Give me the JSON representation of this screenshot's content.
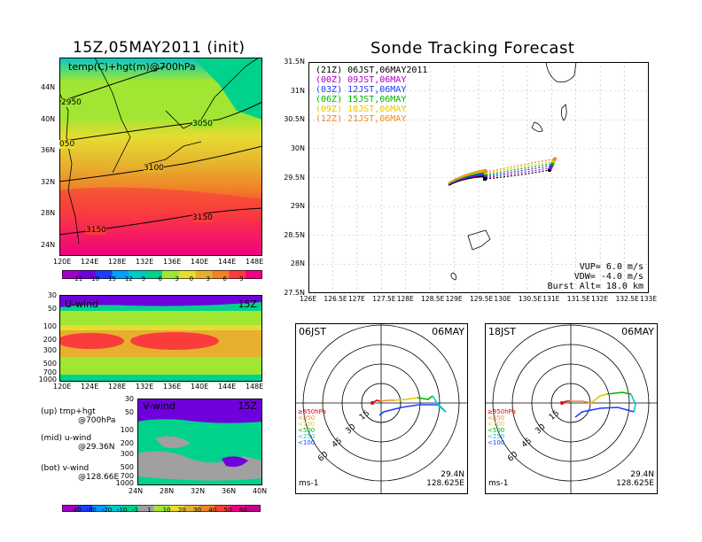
{
  "left_title": "15Z,05MAY2011 (init)",
  "right_title": "Sonde Tracking Forecast",
  "temp_map": {
    "label": "temp(C)+hgt(m)@700hPa",
    "lat_ticks": [
      "44N",
      "40N",
      "36N",
      "32N",
      "28N",
      "24N"
    ],
    "lon_ticks": [
      "120E",
      "124E",
      "128E",
      "132E",
      "136E",
      "140E",
      "144E",
      "148E"
    ],
    "contour_labels": [
      "2950",
      "3050",
      "050",
      "3100",
      "3150",
      "3150"
    ],
    "colorbar_ticks": [
      "-21",
      "-18",
      "-15",
      "-12",
      "-9",
      "-6",
      "-3",
      "0",
      "3",
      "6",
      "9"
    ],
    "colorbar_colors": [
      "#a000c8",
      "#6e00dc",
      "#1e3cff",
      "#00a0ff",
      "#00c8c8",
      "#00d28c",
      "#a0e632",
      "#e6dc32",
      "#e6af2d",
      "#f08228",
      "#fa3c3c",
      "#f00082"
    ]
  },
  "u_wind": {
    "label": "U-wind",
    "time": "15Z",
    "p_ticks": [
      "30",
      "50",
      "100",
      "200",
      "300",
      "500",
      "700",
      "1000"
    ],
    "lon_ticks": [
      "120E",
      "124E",
      "128E",
      "132E",
      "136E",
      "140E",
      "144E",
      "148E"
    ]
  },
  "v_wind": {
    "label": "V-wind",
    "time": "15Z",
    "p_ticks": [
      "30",
      "50",
      "100",
      "200",
      "300",
      "500",
      "700",
      "1000"
    ],
    "lat_ticks": [
      "24N",
      "28N",
      "32N",
      "36N",
      "40N"
    ]
  },
  "legend_notes": [
    {
      "line1": "(up) tmp+hgt",
      "line2": "@700hPa"
    },
    {
      "line1": "(mid) u-wind",
      "line2": "@29.36N"
    },
    {
      "line1": "(bot) v-wind",
      "line2": "@128.66E"
    }
  ],
  "wind_colorbar": {
    "ticks": [
      "-40",
      "-30",
      "-20",
      "-10",
      "-1",
      "1",
      "10",
      "20",
      "30",
      "40",
      "50",
      "60"
    ],
    "colors": [
      "#a000c8",
      "#1e3cff",
      "#00a0ff",
      "#00c8c8",
      "#00d28c",
      "#a0a0a0",
      "#a0e632",
      "#e6dc32",
      "#e6af2d",
      "#f08228",
      "#fa3c3c",
      "#f00082",
      "#c8008c"
    ]
  },
  "tracking": {
    "lat_ticks": [
      "31.5N",
      "31N",
      "30.5N",
      "30N",
      "29.5N",
      "29N",
      "28.5N",
      "28N",
      "27.5N"
    ],
    "lon_ticks": [
      "126E",
      "126.5E",
      "127E",
      "127.5E",
      "128E",
      "128.5E",
      "129E",
      "129.5E",
      "130E",
      "130.5E",
      "131E",
      "131.5E",
      "132E",
      "132.5E",
      "133E"
    ],
    "legend": [
      {
        "text": "(21Z) 06JST,06MAY2011",
        "color": "#000000"
      },
      {
        "text": "(00Z) 09JST,06MAY",
        "color": "#b400c8"
      },
      {
        "text": "(03Z) 12JST,06MAY",
        "color": "#1e3cff"
      },
      {
        "text": "(06Z) 15JST,06MAY",
        "color": "#00b400"
      },
      {
        "text": "(09Z) 18JST,06MAY",
        "color": "#e6c800"
      },
      {
        "text": "(12Z) 21JST,06MAY",
        "color": "#f08c28"
      }
    ],
    "params": [
      "VUP= 6.0 m/s",
      "VDW= -4.0 m/s",
      "Burst Alt= 18.0 km"
    ]
  },
  "hodo_left": {
    "time": "06JST",
    "date": "06MAY",
    "rings": [
      "15",
      "30",
      "45",
      "60"
    ],
    "levels": [
      {
        "text": "≥850hPa",
        "color": "#e60000"
      },
      {
        "text": "<850",
        "color": "#f08c28"
      },
      {
        "text": "<700",
        "color": "#e6c800"
      },
      {
        "text": "<500",
        "color": "#00b400"
      },
      {
        "text": "<250",
        "color": "#00c8c8"
      },
      {
        "text": "<100",
        "color": "#1e3cff"
      }
    ],
    "unit": "ms-1",
    "lat": "29.4N",
    "lon": "128.625E"
  },
  "hodo_right": {
    "time": "18JST",
    "date": "06MAY",
    "rings": [
      "15",
      "30",
      "45",
      "60"
    ],
    "levels": [
      {
        "text": "≥850hPa",
        "color": "#e60000"
      },
      {
        "text": "<850",
        "color": "#f08c28"
      },
      {
        "text": "<700",
        "color": "#e6c800"
      },
      {
        "text": "<500",
        "color": "#00b400"
      },
      {
        "text": "<250",
        "color": "#00c8c8"
      },
      {
        "text": "<100",
        "color": "#1e3cff"
      }
    ],
    "unit": "ms-1",
    "lat": "29.4N",
    "lon": "128.625E"
  }
}
